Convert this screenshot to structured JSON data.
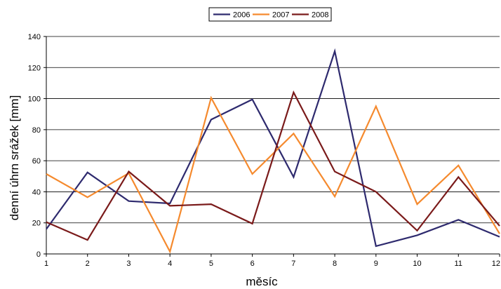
{
  "chart_data": {
    "type": "line",
    "title": "",
    "xlabel": "měsíc",
    "ylabel": "denní úhrn srážek [mm]",
    "x": [
      1,
      2,
      3,
      4,
      5,
      6,
      7,
      8,
      9,
      10,
      11,
      12
    ],
    "x_tick_labels": [
      "1",
      "2",
      "3",
      "4",
      "5",
      "6",
      "7",
      "8",
      "9",
      "10",
      "11",
      "12"
    ],
    "ylim": [
      0,
      140
    ],
    "y_ticks": [
      0,
      20,
      40,
      60,
      80,
      100,
      120,
      140
    ],
    "grid": "horizontal",
    "legend_position": "top-center",
    "series": [
      {
        "name": "2006",
        "color": "#2E2A6E",
        "values": [
          16,
          52.5,
          34,
          32.5,
          86.5,
          99.5,
          49.5,
          130.5,
          5,
          12,
          22,
          11
        ]
      },
      {
        "name": "2007",
        "color": "#F58A2E",
        "values": [
          51.5,
          36.5,
          52,
          1.5,
          100.5,
          51.5,
          77.5,
          37,
          95,
          32,
          57,
          13
        ]
      },
      {
        "name": "2008",
        "color": "#7A1A1A",
        "values": [
          20.5,
          9,
          53,
          31,
          32,
          19.5,
          104,
          53,
          40,
          15,
          49.5,
          18
        ]
      }
    ]
  }
}
